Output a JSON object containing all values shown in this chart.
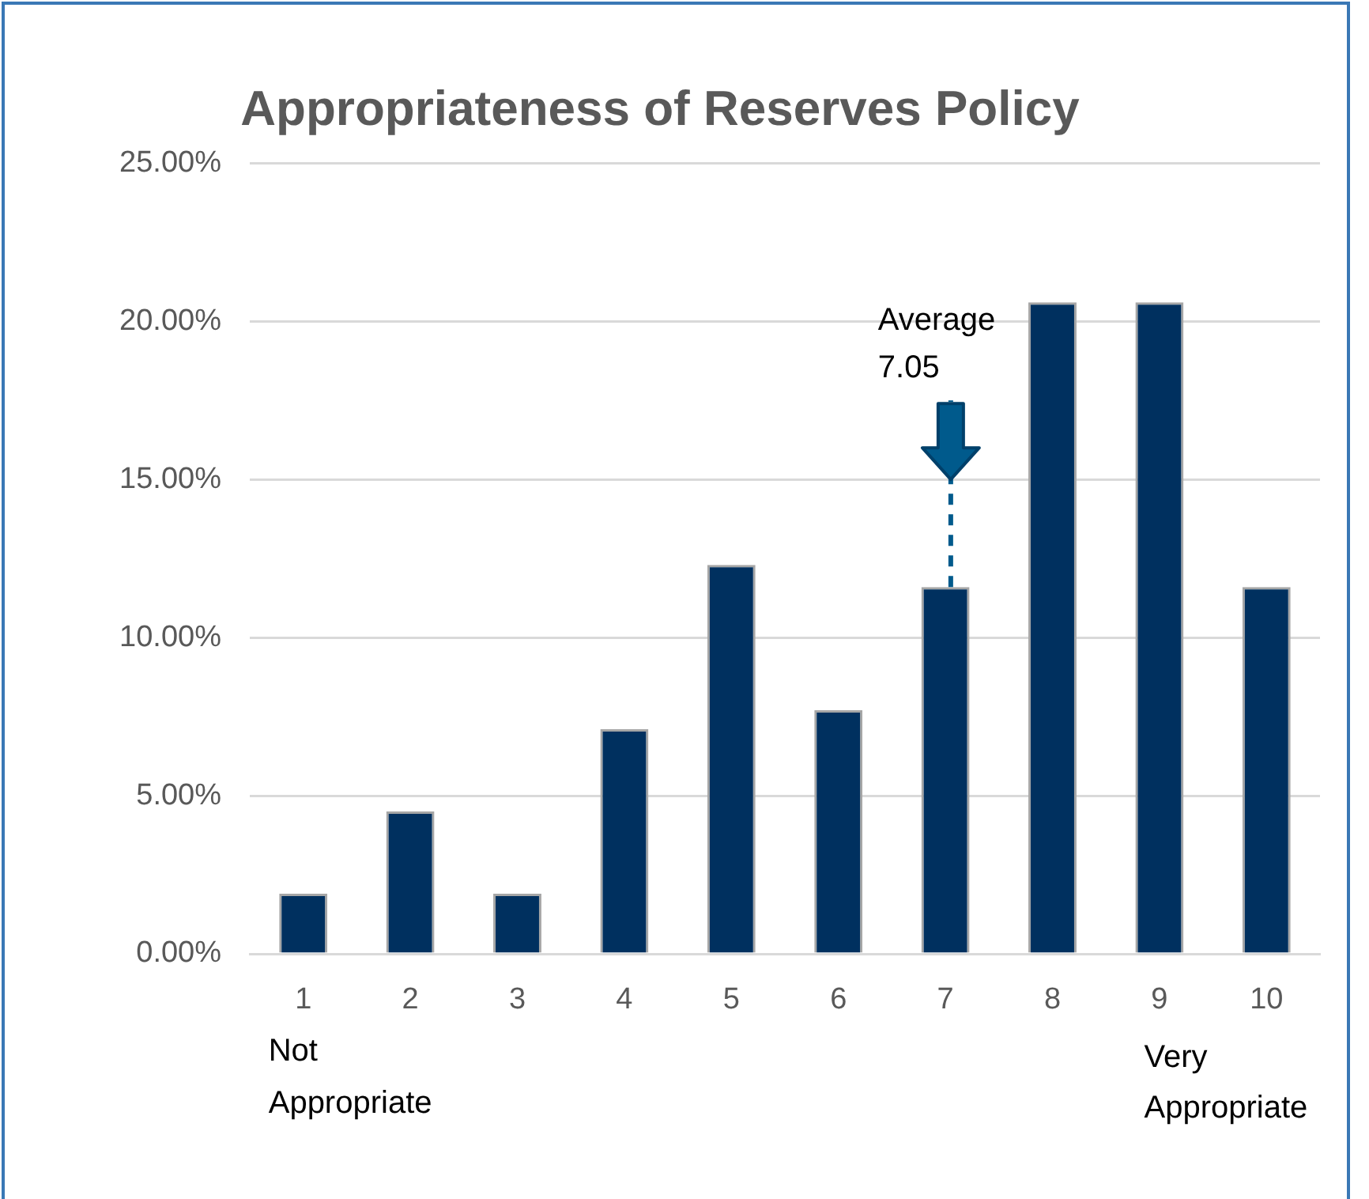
{
  "chart_data": {
    "type": "bar",
    "title": "Appropriateness of Reserves Policy",
    "x": [
      1,
      2,
      3,
      4,
      5,
      6,
      7,
      8,
      9,
      10
    ],
    "values": [
      1.9,
      4.5,
      1.9,
      7.1,
      12.3,
      7.7,
      11.6,
      20.6,
      20.6,
      11.6
    ],
    "color": "#00305f",
    "xlim": [
      0.5,
      10.5
    ],
    "xticks": [
      1,
      2,
      3,
      4,
      5,
      6,
      7,
      8,
      9,
      10
    ],
    "ylim": [
      0,
      25
    ],
    "yticks": [
      {
        "value": 0,
        "label": "0.00%"
      },
      {
        "value": 5,
        "label": "5.00%"
      },
      {
        "value": 10,
        "label": "10.00%"
      },
      {
        "value": 15,
        "label": "15.00%"
      },
      {
        "value": 20,
        "label": "20.00%"
      },
      {
        "value": 25,
        "label": "25.00%"
      }
    ],
    "grid": "y",
    "legend": false,
    "ref_lines": [
      {
        "axis": "x",
        "value": 7.05,
        "label": "Average 7.05",
        "color": "#005a8c",
        "line_style": "dashed"
      }
    ],
    "annotations": [
      "Not Appropriate",
      "Very Appropriate"
    ]
  }
}
